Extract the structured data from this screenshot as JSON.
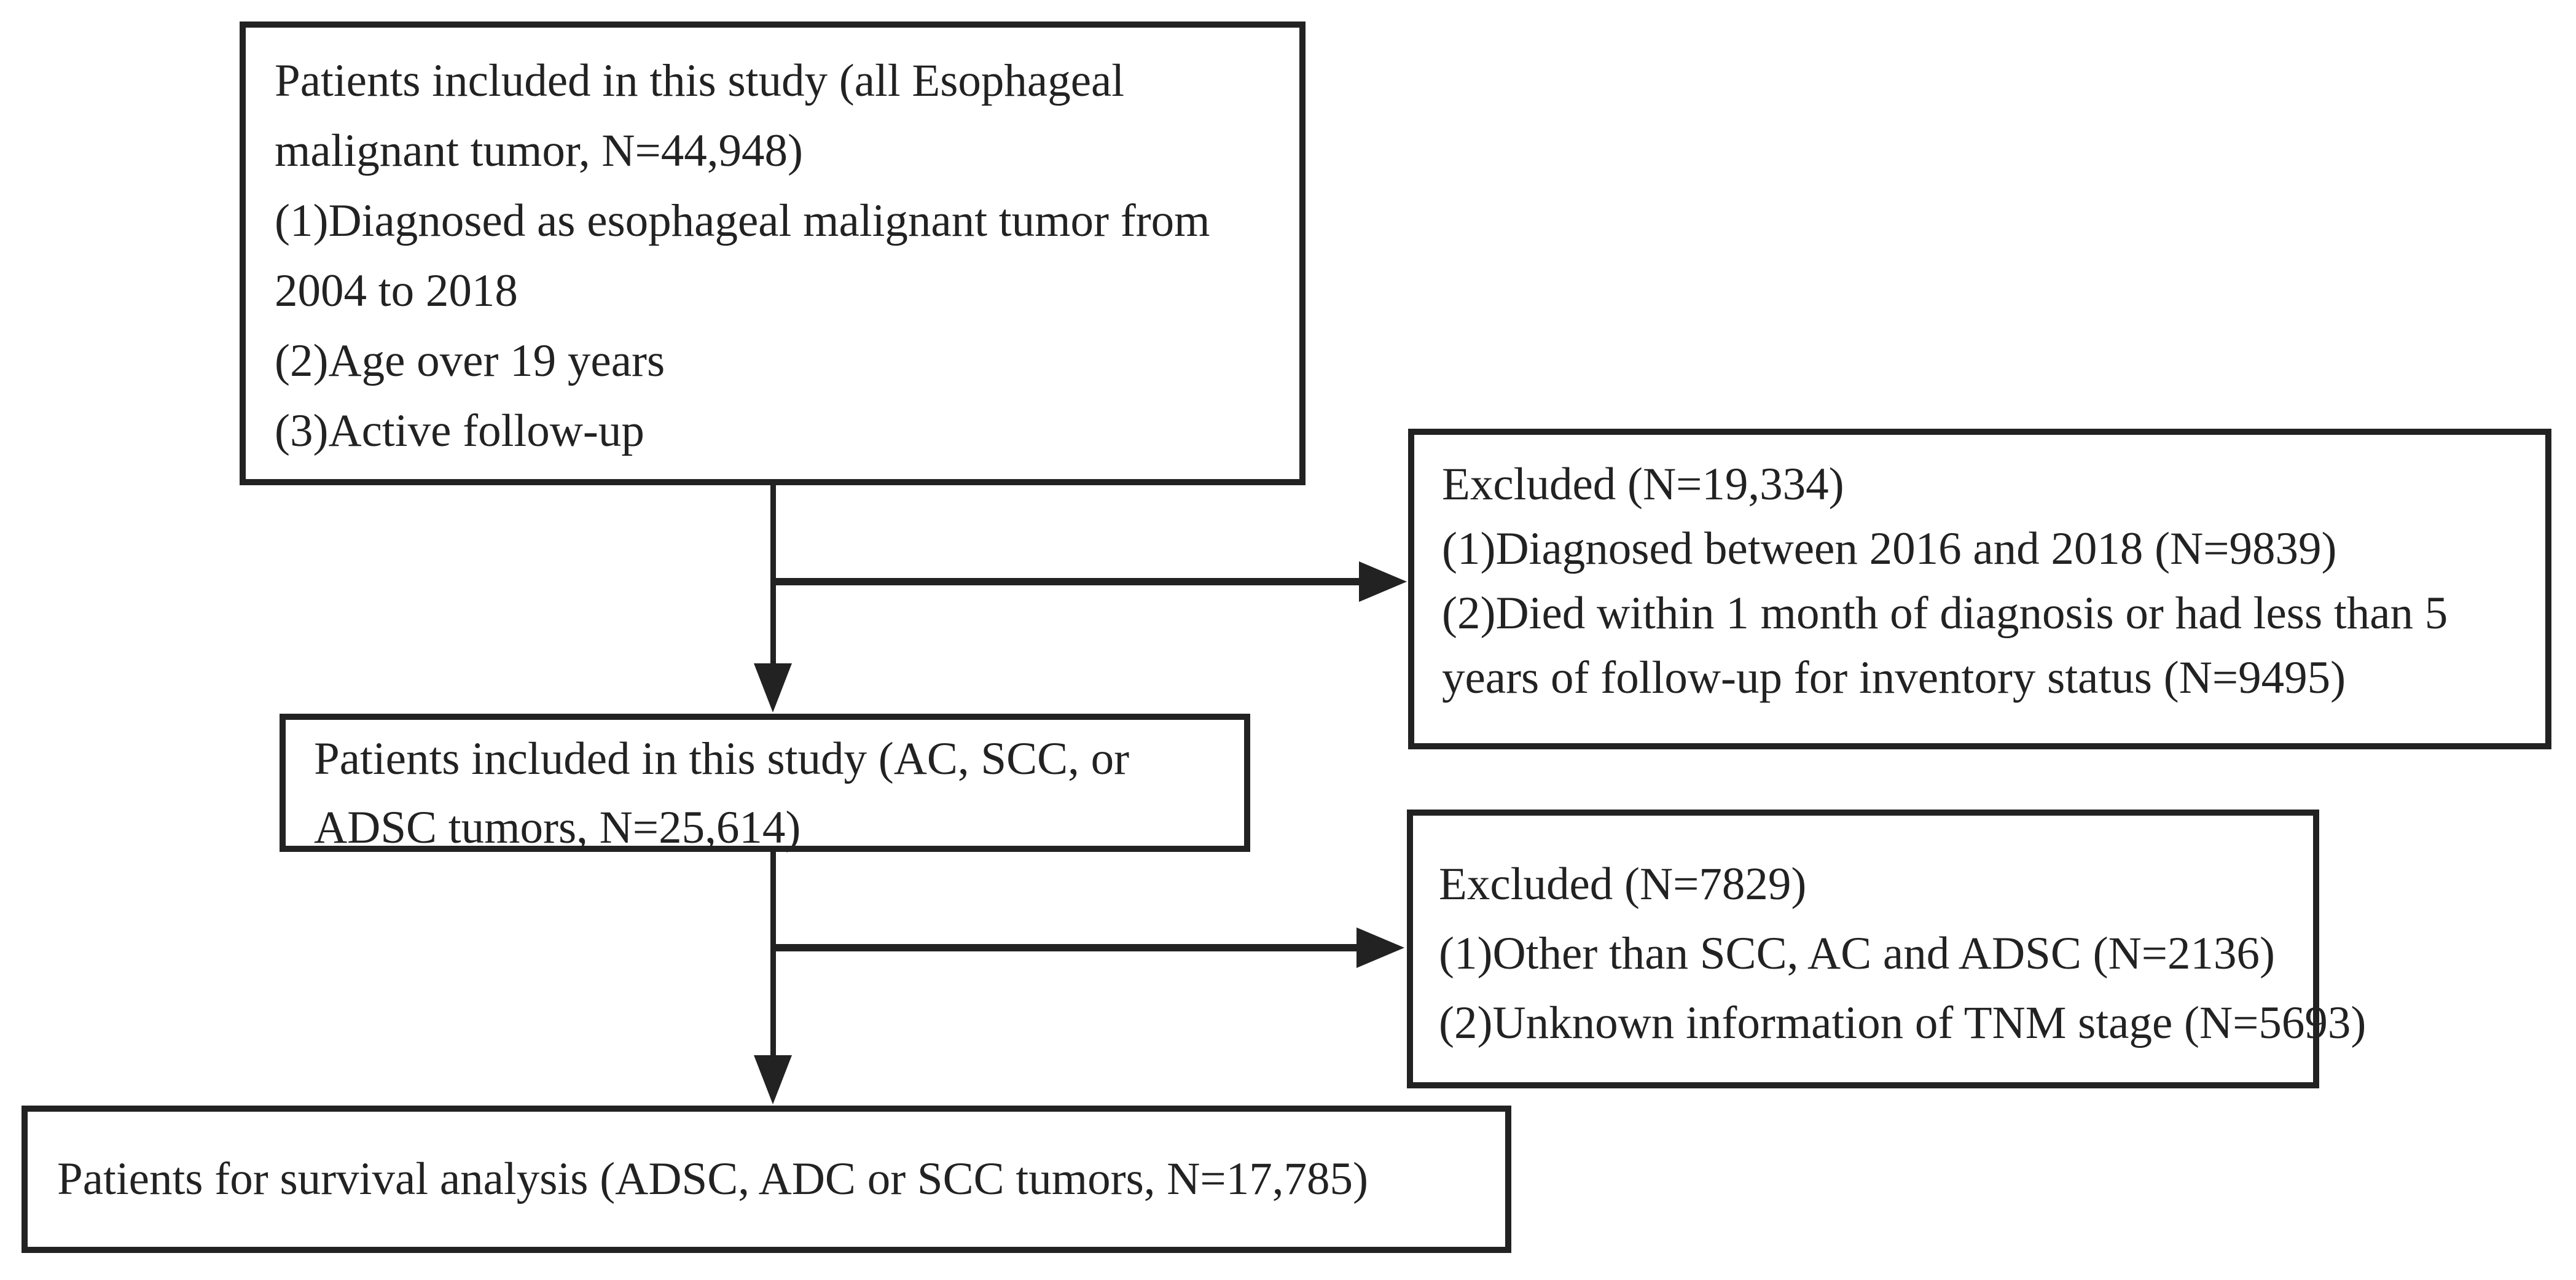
{
  "diagram": {
    "colors": {
      "ink": "#222222",
      "background": "#ffffff"
    },
    "boxes": {
      "initial": {
        "lines": [
          "Patients included in this study (all Esophageal",
          "malignant tumor, N=44,948)",
          "(1)Diagnosed as esophageal malignant tumor from",
          "2004 to 2018",
          "(2)Age over 19 years",
          "(3)Active follow-up"
        ]
      },
      "excluded_first": {
        "lines": [
          "Excluded (N=19,334)",
          "(1)Diagnosed between 2016 and 2018 (N=9839)",
          "(2)Died within 1 month of diagnosis or had less than 5",
          "years of follow-up for inventory status (N=9495)"
        ]
      },
      "intermediate": {
        "lines": [
          "Patients included in this study (AC, SCC, or",
          "ADSC tumors, N=25,614)"
        ]
      },
      "excluded_second": {
        "lines": [
          "Excluded (N=7829)",
          "(1)Other than SCC, AC and ADSC (N=2136)",
          "(2)Unknown information of TNM stage (N=5693)"
        ]
      },
      "final": {
        "lines": [
          "Patients for survival analysis (ADSC, ADC or SCC tumors, N=17,785)"
        ]
      }
    }
  }
}
